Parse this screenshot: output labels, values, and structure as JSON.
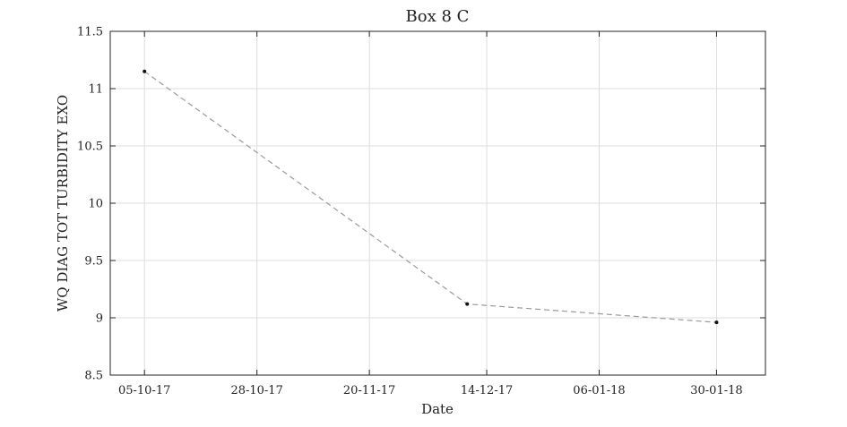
{
  "colors": {
    "background": "#ffffff",
    "axis": "#262626",
    "grid": "#dcdcdc",
    "line": "#9a9a9a",
    "marker": "#111111"
  },
  "chart_data": {
    "type": "line",
    "title": "Box 8 C",
    "xlabel": "Date",
    "ylabel": "WQ DIAG TOT TURBIDITY EXO",
    "x_type": "date",
    "xlim": [
      "2017-09-28",
      "2018-02-09"
    ],
    "ylim": [
      8.5,
      11.5
    ],
    "x_ticks": [
      {
        "date": "2017-10-05",
        "label": "05-10-17"
      },
      {
        "date": "2017-10-28",
        "label": "28-10-17"
      },
      {
        "date": "2017-11-20",
        "label": "20-11-17"
      },
      {
        "date": "2017-12-14",
        "label": "14-12-17"
      },
      {
        "date": "2018-01-06",
        "label": "06-01-18"
      },
      {
        "date": "2018-01-30",
        "label": "30-01-18"
      }
    ],
    "y_ticks": [
      {
        "value": 8.5,
        "label": "8.5"
      },
      {
        "value": 9,
        "label": "9"
      },
      {
        "value": 9.5,
        "label": "9.5"
      },
      {
        "value": 10,
        "label": "10"
      },
      {
        "value": 10.5,
        "label": "10.5"
      },
      {
        "value": 11,
        "label": "11"
      },
      {
        "value": 11.5,
        "label": "11.5"
      }
    ],
    "grid": true,
    "series": [
      {
        "line_style": "dashed",
        "marker": "dot",
        "points": [
          {
            "x": "2017-10-05",
            "y": 11.15
          },
          {
            "x": "2017-12-10",
            "y": 9.12
          },
          {
            "x": "2018-01-30",
            "y": 8.96
          }
        ]
      }
    ]
  }
}
